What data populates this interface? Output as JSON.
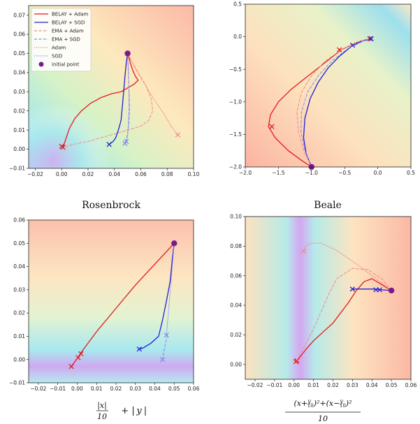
{
  "colors": {
    "belay_adam": "#e41a1c",
    "belay_sgd": "#1f1fd6",
    "ema_adam": "#f08a8a",
    "ema_sgd": "#8a8af0",
    "adam": "#f08a8a",
    "sgd": "#8a8af0",
    "initial_point": "#7a1a8c"
  },
  "legend": [
    {
      "label": "BELAY + Adam",
      "style": "solid",
      "color_key": "belay_adam",
      "marker": "line"
    },
    {
      "label": "BELAY + SGD",
      "style": "solid",
      "color_key": "belay_sgd",
      "marker": "line"
    },
    {
      "label": "EMA + Adam",
      "style": "dashed",
      "color_key": "ema_adam",
      "marker": "line"
    },
    {
      "label": "EMA + SGD",
      "style": "dashed",
      "color_key": "ema_sgd",
      "marker": "line"
    },
    {
      "label": "Adam",
      "style": "dotted",
      "color_key": "adam",
      "marker": "line"
    },
    {
      "label": "SGD",
      "style": "dotted",
      "color_key": "sgd",
      "marker": "line"
    },
    {
      "label": "initial point",
      "style": "marker",
      "color_key": "initial_point",
      "marker": "dot"
    }
  ],
  "captions": {
    "p1": "Rosenbrock",
    "p2": "Beale",
    "p3": "|x|/10 + |y|",
    "p4": "(x+y/10)²+(x−y/10)² / 10"
  },
  "chart_data": [
    {
      "type": "line",
      "title": "",
      "caption": "Rosenbrock",
      "xlim": [
        -0.025,
        0.1
      ],
      "ylim": [
        -0.01,
        0.075
      ],
      "xticks": [
        -0.02,
        0.0,
        0.02,
        0.04,
        0.06,
        0.08,
        0.1
      ],
      "xtick_labels": [
        "−0.02",
        "0.00",
        "0.02",
        "0.04",
        "0.06",
        "0.08",
        "0.10"
      ],
      "yticks": [
        -0.01,
        0.0,
        0.01,
        0.02,
        0.03,
        0.04,
        0.05,
        0.06,
        0.07
      ],
      "ytick_labels": [
        "−0.01",
        "0.00",
        "0.01",
        "0.02",
        "0.03",
        "0.04",
        "0.05",
        "0.06",
        "0.07"
      ],
      "initial_point": [
        0.05,
        0.05
      ],
      "legend_placement": "top-left",
      "series": [
        {
          "name": "BELAY + Adam",
          "key": "belay_adam",
          "style": "solid",
          "x": [
            0.05,
            0.051,
            0.052,
            0.054,
            0.056,
            0.058,
            0.055,
            0.05,
            0.045,
            0.038,
            0.03,
            0.022,
            0.015,
            0.01,
            0.006,
            0.003,
            0.001
          ],
          "y": [
            0.05,
            0.048,
            0.045,
            0.041,
            0.038,
            0.036,
            0.034,
            0.032,
            0.03,
            0.029,
            0.027,
            0.024,
            0.02,
            0.016,
            0.011,
            0.005,
            0.001
          ],
          "end_markers": [
            [
              0.001,
              0.001
            ],
            [
              0.0,
              0.0015
            ]
          ]
        },
        {
          "name": "BELAY + SGD",
          "key": "belay_sgd",
          "style": "solid",
          "x": [
            0.05,
            0.049,
            0.048,
            0.047,
            0.046,
            0.045,
            0.043,
            0.041,
            0.039,
            0.036
          ],
          "y": [
            0.05,
            0.045,
            0.038,
            0.03,
            0.022,
            0.015,
            0.01,
            0.006,
            0.004,
            0.0025
          ],
          "end_markers": [
            [
              0.036,
              0.0025
            ]
          ]
        },
        {
          "name": "EMA + Adam",
          "key": "ema_adam",
          "style": "dashed",
          "x": [
            0.05,
            0.053,
            0.058,
            0.064,
            0.068,
            0.069,
            0.066,
            0.06,
            0.05,
            0.04,
            0.03,
            0.02,
            0.012,
            0.006,
            0.002
          ],
          "y": [
            0.05,
            0.046,
            0.04,
            0.033,
            0.026,
            0.02,
            0.015,
            0.012,
            0.01,
            0.008,
            0.006,
            0.004,
            0.003,
            0.002,
            0.001
          ],
          "end_markers": []
        },
        {
          "name": "EMA + SGD",
          "key": "ema_sgd",
          "style": "dashed",
          "x": [
            0.05,
            0.0505,
            0.051,
            0.0515,
            0.051,
            0.05,
            0.049,
            0.048
          ],
          "y": [
            0.05,
            0.042,
            0.032,
            0.022,
            0.014,
            0.008,
            0.005,
            0.003
          ],
          "end_markers": [
            [
              0.048,
              0.003
            ]
          ]
        },
        {
          "name": "Adam",
          "key": "adam",
          "style": "dotted",
          "x": [
            0.05,
            0.056,
            0.063,
            0.07,
            0.077,
            0.083,
            0.088
          ],
          "y": [
            0.05,
            0.042,
            0.034,
            0.026,
            0.019,
            0.012,
            0.0075
          ],
          "end_markers": [
            [
              0.088,
              0.0075
            ]
          ]
        },
        {
          "name": "SGD",
          "key": "sgd",
          "style": "dotted",
          "x": [
            0.05,
            0.0505,
            0.051,
            0.051,
            0.0505,
            0.05,
            0.049
          ],
          "y": [
            0.05,
            0.042,
            0.032,
            0.02,
            0.012,
            0.007,
            0.004
          ],
          "end_markers": [
            [
              0.049,
              0.004
            ]
          ]
        }
      ]
    },
    {
      "type": "line",
      "title": "",
      "caption": "Beale",
      "xlim": [
        -2.0,
        0.5
      ],
      "ylim": [
        -2.0,
        0.5
      ],
      "xticks": [
        -2.0,
        -1.5,
        -1.0,
        -0.5,
        0.0,
        0.5
      ],
      "xtick_labels": [
        "−2.0",
        "−1.5",
        "−1.0",
        "−0.5",
        "0.0",
        "0.5"
      ],
      "yticks": [
        -2.0,
        -1.5,
        -1.0,
        -0.5,
        0.0,
        0.5
      ],
      "ytick_labels": [
        "−2.0",
        "−1.5",
        "−1.0",
        "−0.5",
        "0.0",
        "0.5"
      ],
      "initial_point": [
        -1.0,
        -2.0
      ],
      "series": [
        {
          "name": "BELAY + Adam",
          "key": "belay_adam",
          "style": "solid",
          "x": [
            -1.0,
            -1.15,
            -1.35,
            -1.55,
            -1.65,
            -1.62,
            -1.5,
            -1.3,
            -1.05,
            -0.8,
            -0.55,
            -0.3,
            -0.12
          ],
          "y": [
            -2.0,
            -1.9,
            -1.75,
            -1.55,
            -1.38,
            -1.2,
            -1.0,
            -0.8,
            -0.6,
            -0.4,
            -0.2,
            -0.08,
            -0.03
          ],
          "end_markers": [
            [
              -1.6,
              -1.38
            ],
            [
              -0.58,
              -0.2
            ],
            [
              -0.12,
              -0.03
            ]
          ]
        },
        {
          "name": "BELAY + SGD",
          "key": "belay_sgd",
          "style": "solid",
          "x": [
            -1.0,
            -1.08,
            -1.12,
            -1.1,
            -1.02,
            -0.9,
            -0.75,
            -0.58,
            -0.4,
            -0.25,
            -0.1
          ],
          "y": [
            -2.0,
            -1.8,
            -1.55,
            -1.25,
            -0.95,
            -0.7,
            -0.48,
            -0.3,
            -0.15,
            -0.07,
            -0.03
          ],
          "end_markers": [
            [
              -0.38,
              -0.13
            ],
            [
              -0.1,
              -0.03
            ]
          ]
        },
        {
          "name": "EMA + Adam",
          "key": "ema_adam",
          "style": "dashed",
          "x": [
            -1.0,
            -1.12,
            -1.2,
            -1.22,
            -1.15,
            -1.0,
            -0.8,
            -0.55,
            -0.3,
            -0.12
          ],
          "y": [
            -2.0,
            -1.75,
            -1.45,
            -1.15,
            -0.85,
            -0.6,
            -0.38,
            -0.2,
            -0.08,
            -0.03
          ],
          "end_markers": []
        },
        {
          "name": "EMA + SGD",
          "key": "ema_sgd",
          "style": "dashed",
          "x": [
            -1.0,
            -1.1,
            -1.16,
            -1.15,
            -1.06,
            -0.9,
            -0.7,
            -0.45,
            -0.2
          ],
          "y": [
            -2.0,
            -1.75,
            -1.45,
            -1.15,
            -0.85,
            -0.6,
            -0.38,
            -0.18,
            -0.06
          ],
          "end_markers": []
        }
      ]
    },
    {
      "type": "line",
      "title": "",
      "caption": "|x|/10 + |y|",
      "xlim": [
        -0.025,
        0.06
      ],
      "ylim": [
        -0.01,
        0.06
      ],
      "xticks": [
        -0.02,
        -0.01,
        0.0,
        0.01,
        0.02,
        0.03,
        0.04,
        0.05,
        0.06
      ],
      "xtick_labels": [
        "−0.02",
        "−0.01",
        "0.00",
        "0.01",
        "0.02",
        "0.03",
        "0.04",
        "0.05",
        "0.06"
      ],
      "yticks": [
        -0.01,
        0.0,
        0.01,
        0.02,
        0.03,
        0.04,
        0.05,
        0.06
      ],
      "ytick_labels": [
        "−0.01",
        "0.00",
        "0.01",
        "0.02",
        "0.03",
        "0.04",
        "0.05",
        "0.06"
      ],
      "initial_point": [
        0.05,
        0.05
      ],
      "series": [
        {
          "name": "BELAY + Adam",
          "key": "belay_adam",
          "style": "solid",
          "x": [
            0.05,
            0.04,
            0.03,
            0.02,
            0.01,
            0.002,
            0.0005,
            -0.003
          ],
          "y": [
            0.05,
            0.041,
            0.032,
            0.022,
            0.012,
            0.003,
            0.001,
            -0.003
          ],
          "end_markers": [
            [
              0.002,
              0.0025
            ],
            [
              0.0005,
              0.0008
            ],
            [
              -0.003,
              -0.003
            ]
          ]
        },
        {
          "name": "BELAY + SGD",
          "key": "belay_sgd",
          "style": "solid",
          "x": [
            0.05,
            0.049,
            0.048,
            0.046,
            0.044,
            0.042,
            0.038,
            0.034,
            0.032
          ],
          "y": [
            0.05,
            0.043,
            0.034,
            0.025,
            0.017,
            0.01,
            0.007,
            0.005,
            0.0045
          ],
          "end_markers": [
            [
              0.032,
              0.0045
            ]
          ]
        },
        {
          "name": "SGD",
          "key": "sgd",
          "style": "dotted",
          "x": [
            0.05,
            0.049,
            0.048,
            0.047,
            0.046
          ],
          "y": [
            0.05,
            0.04,
            0.03,
            0.02,
            0.0105
          ],
          "end_markers": [
            [
              0.046,
              0.0105
            ]
          ]
        },
        {
          "name": "EMA + SGD",
          "key": "ema_sgd",
          "style": "dashed",
          "x": [
            0.0465,
            0.045,
            0.044
          ],
          "y": [
            0.0105,
            0.005,
            0.0
          ],
          "end_markers": [
            [
              0.044,
              0.0
            ]
          ]
        }
      ]
    },
    {
      "type": "line",
      "title": "",
      "caption": "(x+y/10)²+(x−y/10)² / 10",
      "xlim": [
        -0.025,
        0.06
      ],
      "ylim": [
        -0.01,
        0.1
      ],
      "xticks": [
        -0.02,
        -0.01,
        0.0,
        0.01,
        0.02,
        0.03,
        0.04,
        0.05,
        0.06
      ],
      "xtick_labels": [
        "−0.02",
        "−0.01",
        "0.00",
        "0.01",
        "0.02",
        "0.03",
        "0.04",
        "0.05",
        "0.06"
      ],
      "yticks": [
        0.0,
        0.02,
        0.04,
        0.06,
        0.08,
        0.1
      ],
      "ytick_labels": [
        "0.00",
        "0.02",
        "0.04",
        "0.06",
        "0.08",
        "0.10"
      ],
      "initial_point": [
        0.05,
        0.05
      ],
      "series": [
        {
          "name": "BELAY + Adam",
          "key": "belay_adam",
          "style": "solid",
          "x": [
            0.05,
            0.045,
            0.04,
            0.036,
            0.032,
            0.028,
            0.024,
            0.02,
            0.015,
            0.01,
            0.006,
            0.003,
            0.001
          ],
          "y": [
            0.05,
            0.054,
            0.058,
            0.056,
            0.05,
            0.042,
            0.035,
            0.028,
            0.022,
            0.016,
            0.01,
            0.005,
            0.002
          ],
          "end_markers": [
            [
              0.001,
              0.002
            ],
            [
              0.0015,
              0.0025
            ]
          ]
        },
        {
          "name": "BELAY + SGD",
          "key": "belay_sgd",
          "style": "solid",
          "x": [
            0.05,
            0.045,
            0.04,
            0.035,
            0.03
          ],
          "y": [
            0.05,
            0.0505,
            0.051,
            0.051,
            0.051
          ],
          "end_markers": [
            [
              0.03,
              0.051
            ],
            [
              0.042,
              0.0505
            ],
            [
              0.044,
              0.0505
            ]
          ]
        },
        {
          "name": "EMA + Adam",
          "key": "ema_adam",
          "style": "dashed",
          "x": [
            0.05,
            0.045,
            0.038,
            0.03,
            0.022,
            0.018,
            0.014,
            0.01,
            0.006,
            0.003,
            0.001
          ],
          "y": [
            0.05,
            0.058,
            0.064,
            0.065,
            0.058,
            0.048,
            0.036,
            0.024,
            0.014,
            0.006,
            0.002
          ],
          "end_markers": []
        },
        {
          "name": "Adam",
          "key": "adam",
          "style": "dotted",
          "x": [
            0.05,
            0.042,
            0.032,
            0.022,
            0.014,
            0.009,
            0.006,
            0.005
          ],
          "y": [
            0.05,
            0.058,
            0.068,
            0.077,
            0.082,
            0.082,
            0.08,
            0.0765
          ],
          "end_markers": [
            [
              0.005,
              0.0765
            ]
          ]
        }
      ]
    }
  ]
}
